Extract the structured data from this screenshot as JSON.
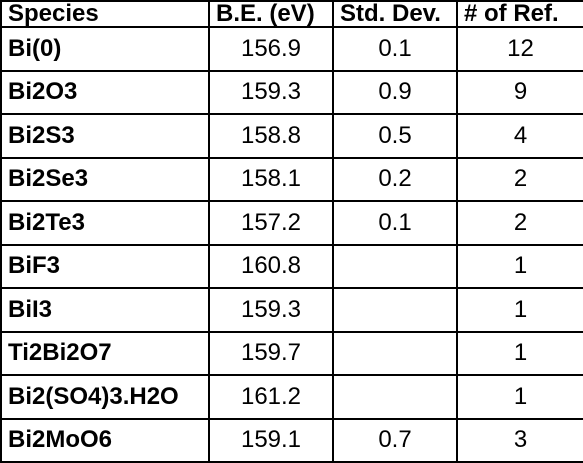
{
  "table": {
    "headers": [
      "Species",
      "B.E. (eV)",
      "Std. Dev.",
      "# of Ref."
    ],
    "rows": [
      {
        "species": "Bi(0)",
        "be": "156.9",
        "std": "0.1",
        "refs": "12"
      },
      {
        "species": "Bi2O3",
        "be": "159.3",
        "std": "0.9",
        "refs": "9"
      },
      {
        "species": "Bi2S3",
        "be": "158.8",
        "std": "0.5",
        "refs": "4"
      },
      {
        "species": "Bi2Se3",
        "be": "158.1",
        "std": "0.2",
        "refs": "2"
      },
      {
        "species": "Bi2Te3",
        "be": "157.2",
        "std": "0.1",
        "refs": "2"
      },
      {
        "species": "BiF3",
        "be": "160.8",
        "std": "",
        "refs": "1"
      },
      {
        "species": "BiI3",
        "be": "159.3",
        "std": "",
        "refs": "1"
      },
      {
        "species": "Ti2Bi2O7",
        "be": "159.7",
        "std": "",
        "refs": "1"
      },
      {
        "species": "Bi2(SO4)3.H2O",
        "be": "161.2",
        "std": "",
        "refs": "1"
      },
      {
        "species": "Bi2MoO6",
        "be": "159.1",
        "std": "0.7",
        "refs": "3"
      }
    ]
  }
}
